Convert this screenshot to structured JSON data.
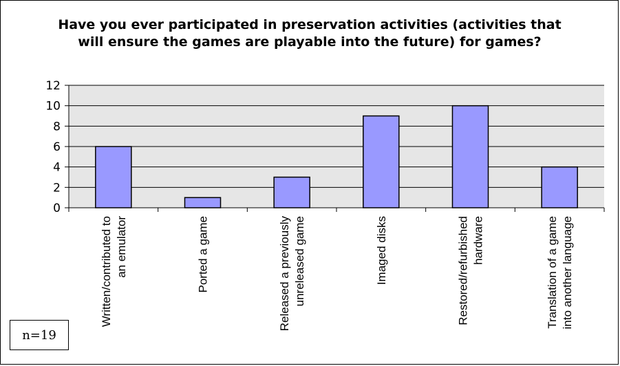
{
  "chart_data": {
    "type": "bar",
    "title": "Have you ever participated in preservation activities (activities that\nwill ensure the games are playable into the future) for games?",
    "categories": [
      [
        "Written/contributed to",
        "an emulator"
      ],
      [
        "Ported a game"
      ],
      [
        "Released a previously",
        "unreleased game"
      ],
      [
        "Imaged disks"
      ],
      [
        "Restored/refurbished",
        "hardware"
      ],
      [
        "Translation of a game",
        "into another language"
      ]
    ],
    "values": [
      6,
      1,
      3,
      9,
      10,
      4
    ],
    "xlabel": "",
    "ylabel": "",
    "ylim": [
      0,
      12
    ],
    "yticks": [
      0,
      2,
      4,
      6,
      8,
      10,
      12
    ],
    "grid": true,
    "legend": "none",
    "colors": {
      "bar_fill": "#9999ff",
      "bar_stroke": "#000000",
      "plot_background": "#e6e6e6",
      "gridline": "#000000"
    }
  },
  "note": "n=19"
}
